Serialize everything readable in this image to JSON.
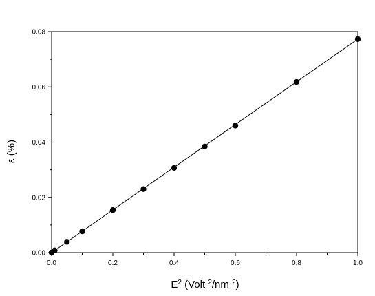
{
  "chart_data": {
    "type": "scatter",
    "title": "",
    "xlabel": {
      "base": "E",
      "sup": "2",
      "rest_before": " (Volt ",
      "sup2": "2",
      "mid": "/nm ",
      "sup3": "2",
      "end": ")"
    },
    "ylabel": "ε (%)",
    "xlim": [
      0.0,
      1.0
    ],
    "ylim": [
      0.0,
      0.08
    ],
    "xticks": [
      "0.0",
      "0.2",
      "0.4",
      "0.6",
      "0.8",
      "1.0"
    ],
    "yticks": [
      "0.00",
      "0.02",
      "0.04",
      "0.06",
      "0.08"
    ],
    "grid": false,
    "series": [
      {
        "x": [
          0.0,
          0.01,
          0.05,
          0.1,
          0.2,
          0.3,
          0.4,
          0.5,
          0.6,
          0.8,
          1.0
        ],
        "y": [
          0.0,
          0.0008,
          0.0039,
          0.0077,
          0.0154,
          0.023,
          0.0307,
          0.0384,
          0.046,
          0.0618,
          0.0773
        ],
        "fit_line": {
          "x": [
            0.0,
            1.0
          ],
          "y": [
            0.0,
            0.0773
          ]
        }
      }
    ],
    "colors": {
      "marker": "#000000",
      "line": "#000000",
      "axes": "#000000"
    }
  }
}
